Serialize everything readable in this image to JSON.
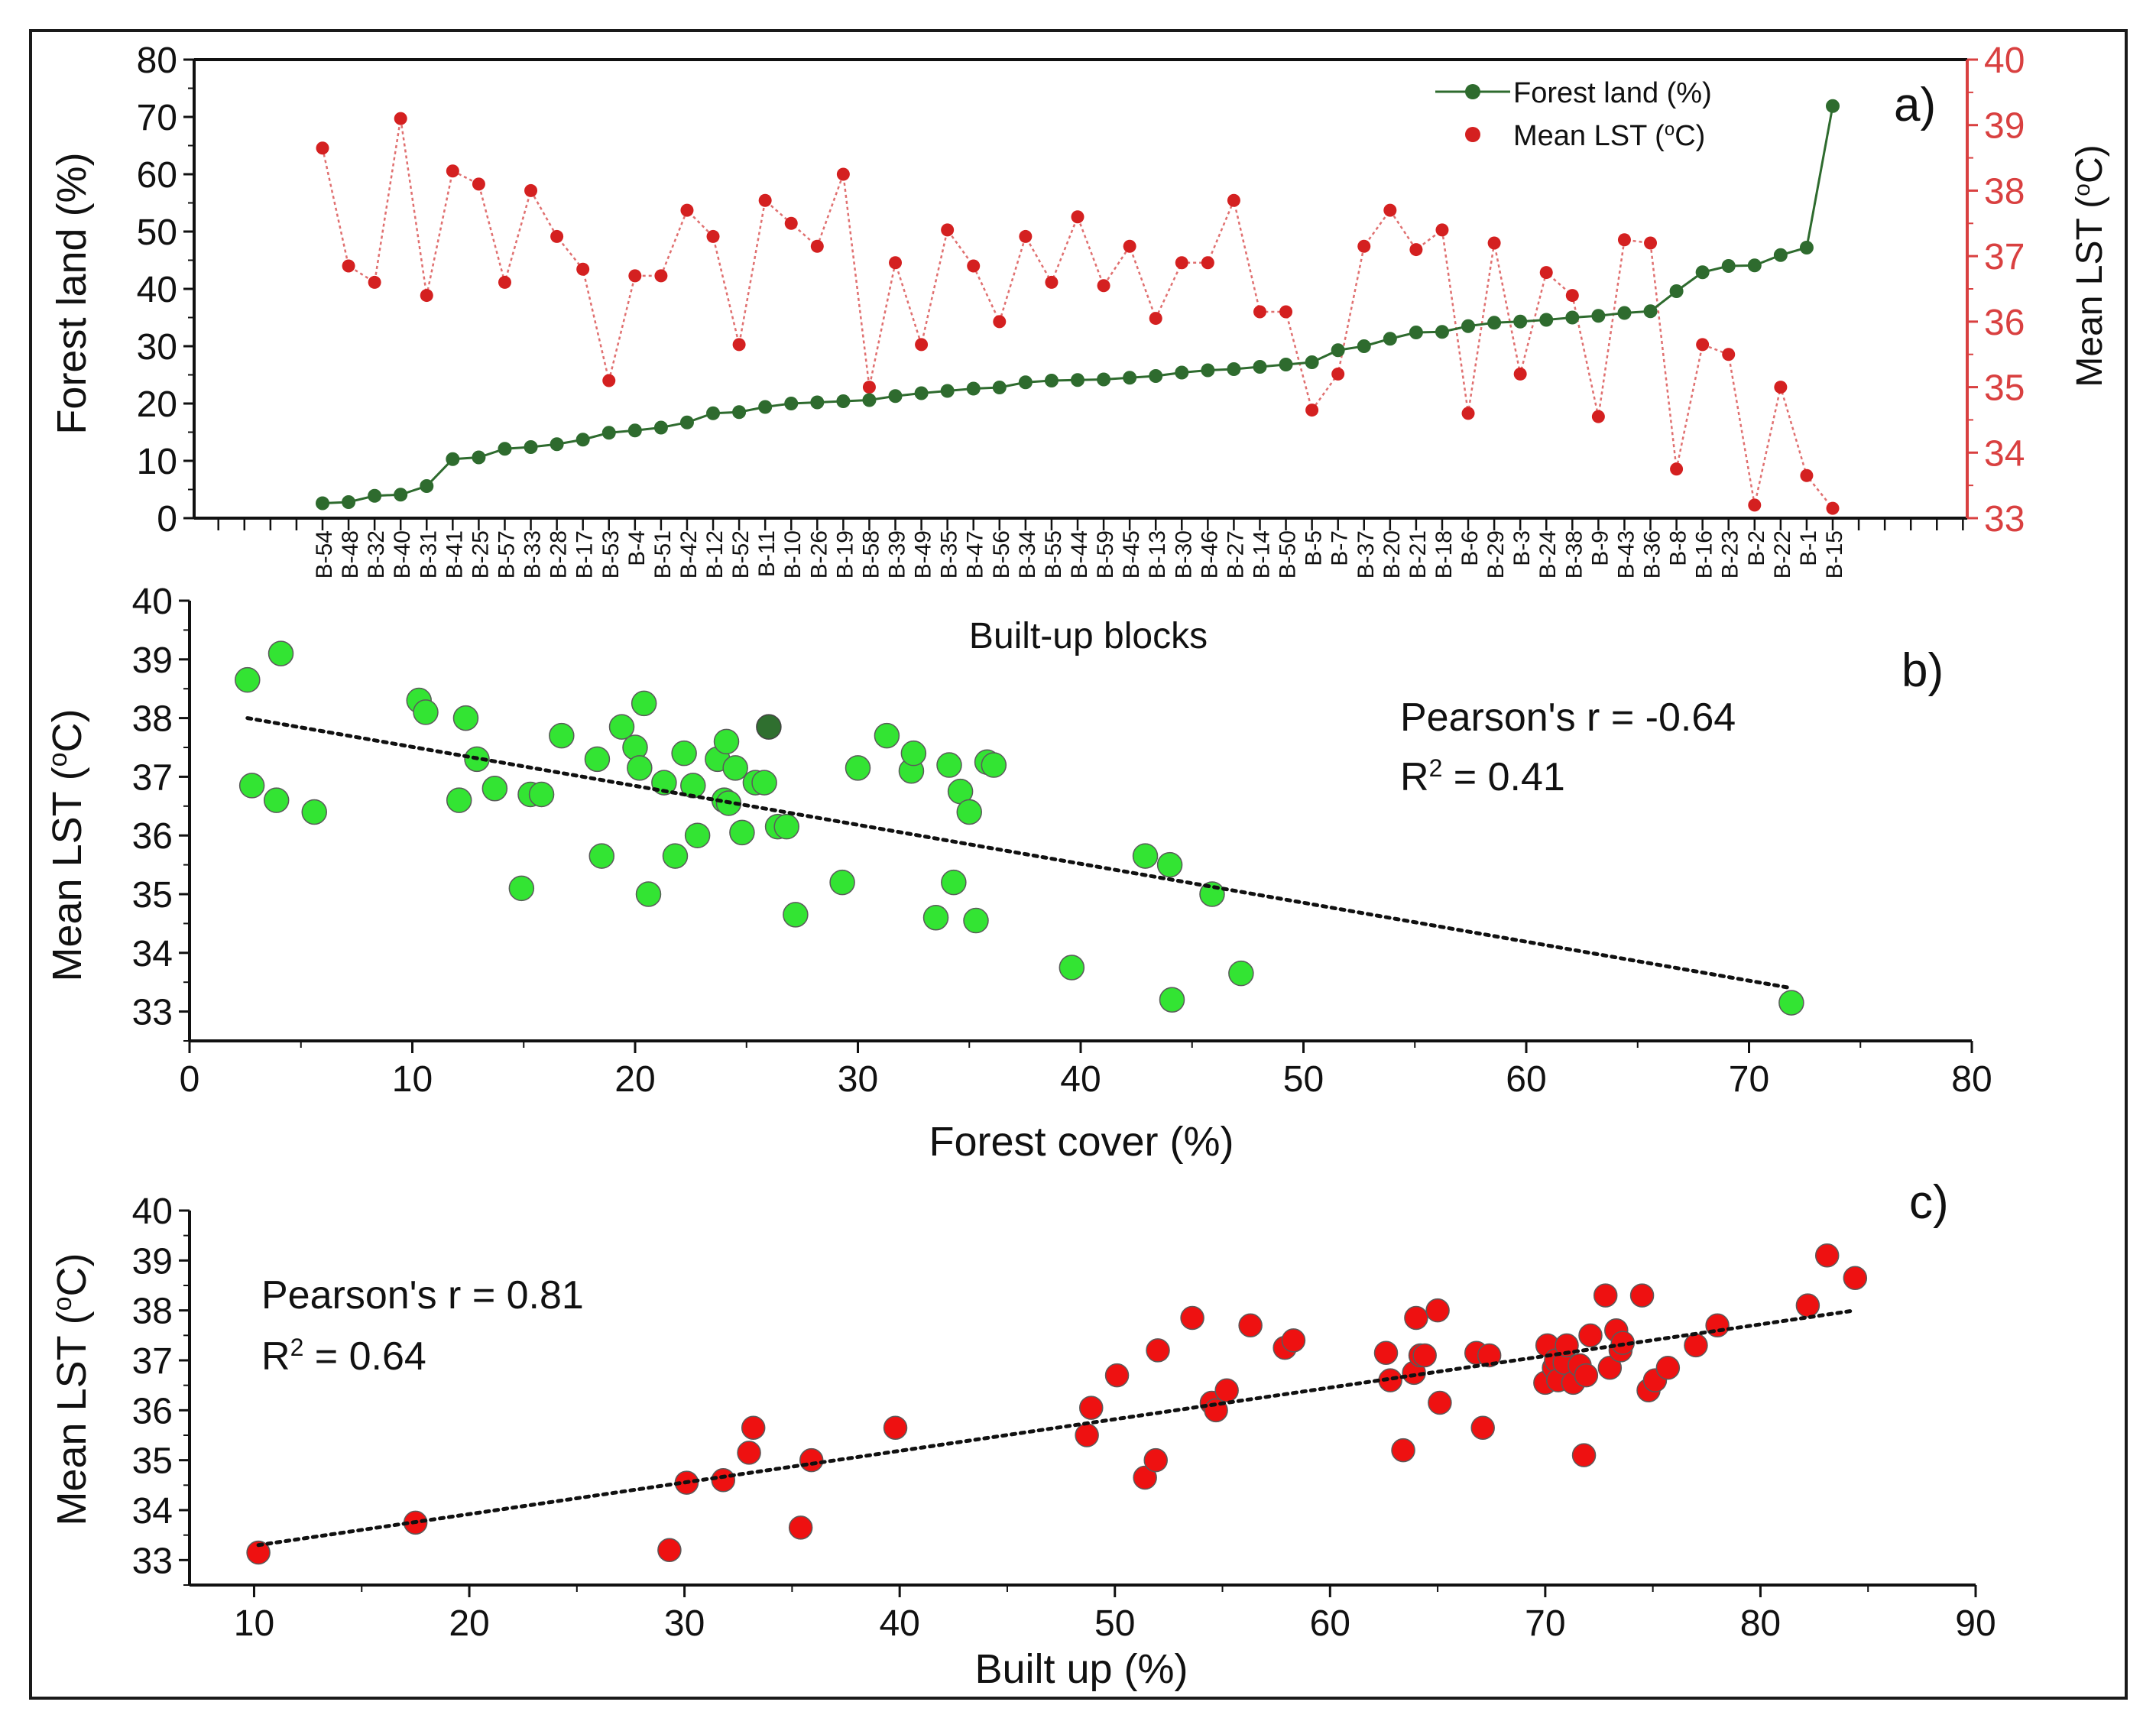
{
  "chart_data": [
    {
      "type": "line",
      "panel_label": "a)",
      "xlabel": "Built-up blocks",
      "ylabel": "Forest land (%)",
      "ylabel_right_html": "Mean LST (<tspan baseline-shift=\"super\" font-size=\"30\">o</tspan>C)",
      "ylim": [
        0,
        80
      ],
      "y_ticks": [
        "0",
        "10",
        "20",
        "30",
        "40",
        "50",
        "60",
        "70",
        "80"
      ],
      "ylim_right": [
        33,
        40
      ],
      "y_ticks_right": [
        "33",
        "34",
        "35",
        "36",
        "37",
        "38",
        "39",
        "40"
      ],
      "legend_position": "top-right",
      "legend": {
        "forest": "Forest land (%)",
        "lst_html": "Mean LST (<tspan baseline-shift=\"super\" font-size=\"24\">o</tspan>C)"
      },
      "colors": {
        "forest": "#2e6b2e",
        "lst": "#d42020",
        "right_axis": "#d94040"
      },
      "categories": [
        "B-54",
        "B-48",
        "B-32",
        "B-40",
        "B-31",
        "B-41",
        "B-25",
        "B-57",
        "B-33",
        "B-28",
        "B-17",
        "B-53",
        "B-4",
        "B-51",
        "B-42",
        "B-12",
        "B-52",
        "B-11",
        "B-10",
        "B-26",
        "B-19",
        "B-58",
        "B-39",
        "B-49",
        "B-35",
        "B-47",
        "B-56",
        "B-34",
        "B-55",
        "B-44",
        "B-59",
        "B-45",
        "B-13",
        "B-30",
        "B-46",
        "B-27",
        "B-14",
        "B-50",
        "B-5",
        "B-7",
        "B-37",
        "B-20",
        "B-21",
        "B-18",
        "B-6",
        "B-29",
        "B-3",
        "B-24",
        "B-38",
        "B-9",
        "B-43",
        "B-36",
        "B-8",
        "B-16",
        "B-23",
        "B-2",
        "B-22",
        "B-1",
        "B-15"
      ],
      "series": [
        {
          "name": "Forest land (%)",
          "axis": "left",
          "values": [
            2.6,
            2.8,
            3.9,
            4.1,
            5.6,
            10.3,
            10.6,
            12.1,
            12.4,
            12.9,
            13.7,
            14.9,
            15.3,
            15.8,
            16.7,
            18.3,
            18.5,
            19.4,
            20.0,
            20.2,
            20.4,
            20.6,
            21.3,
            21.8,
            22.2,
            22.6,
            22.8,
            23.7,
            24.0,
            24.1,
            24.2,
            24.5,
            24.8,
            25.4,
            25.8,
            26.0,
            26.4,
            26.8,
            27.2,
            29.3,
            30.0,
            31.3,
            32.4,
            32.5,
            33.5,
            34.1,
            34.3,
            34.6,
            35.0,
            35.3,
            35.8,
            36.1,
            39.6,
            42.9,
            44.0,
            44.1,
            45.9,
            47.2,
            71.9
          ]
        },
        {
          "name": "Mean LST (°C)",
          "axis": "right",
          "values": [
            38.65,
            36.85,
            36.6,
            39.1,
            36.4,
            38.3,
            38.1,
            36.6,
            38.0,
            37.3,
            36.8,
            35.1,
            36.7,
            36.7,
            37.7,
            37.3,
            35.65,
            37.85,
            37.5,
            37.15,
            38.25,
            35.0,
            36.9,
            35.65,
            37.4,
            36.85,
            36.0,
            37.3,
            36.6,
            37.6,
            36.55,
            37.15,
            36.05,
            36.9,
            36.9,
            37.85,
            36.15,
            36.15,
            34.65,
            35.2,
            37.15,
            37.7,
            37.1,
            37.4,
            34.6,
            37.2,
            35.2,
            36.75,
            36.4,
            34.55,
            37.25,
            37.2,
            33.75,
            35.65,
            35.5,
            33.2,
            35.0,
            33.65,
            33.15
          ]
        }
      ]
    },
    {
      "type": "scatter",
      "panel_label": "b)",
      "xlabel": "Forest cover (%)",
      "ylabel_html": "Mean LST (<tspan baseline-shift=\"super\" font-size=\"34\">o</tspan>C)",
      "xlim": [
        0,
        80
      ],
      "x_ticks": [
        "0",
        "10",
        "20",
        "30",
        "40",
        "50",
        "60",
        "70",
        "80"
      ],
      "ylim": [
        32.5,
        40
      ],
      "y_ticks": [
        "33",
        "34",
        "35",
        "36",
        "37",
        "38",
        "39",
        "40"
      ],
      "annotation_r": "Pearson's r = -0.64",
      "annotation_r2_html": "R<tspan baseline-shift=\"super\" font-size=\"32\">2</tspan> = 0.41",
      "trendline": {
        "x": [
          2.6,
          71.9
        ],
        "y": [
          38.0,
          33.4
        ]
      },
      "point_color": "#33e433",
      "highlight_color": "#2f6f2f",
      "highlight": {
        "x": 26.0,
        "y": 37.85
      },
      "x": [
        2.6,
        2.8,
        3.9,
        4.1,
        5.6,
        10.3,
        10.6,
        12.1,
        12.4,
        12.9,
        13.7,
        14.9,
        15.3,
        15.8,
        16.7,
        18.3,
        18.5,
        19.4,
        20.0,
        20.2,
        20.4,
        20.6,
        21.3,
        21.8,
        22.2,
        22.6,
        22.8,
        23.7,
        24.0,
        24.1,
        24.2,
        24.5,
        24.8,
        25.4,
        25.8,
        26.4,
        26.8,
        27.2,
        29.3,
        30.0,
        31.3,
        32.4,
        32.5,
        33.5,
        34.1,
        34.3,
        34.6,
        35.0,
        35.3,
        35.8,
        36.1,
        39.6,
        42.9,
        44.0,
        44.1,
        45.9,
        47.2,
        71.9
      ],
      "y": [
        38.65,
        36.85,
        36.6,
        39.1,
        36.4,
        38.3,
        38.1,
        36.6,
        38.0,
        37.3,
        36.8,
        35.1,
        36.7,
        36.7,
        37.7,
        37.3,
        35.65,
        37.85,
        37.5,
        37.15,
        38.25,
        35.0,
        36.9,
        35.65,
        37.4,
        36.85,
        36.0,
        37.3,
        36.6,
        37.6,
        36.55,
        37.15,
        36.05,
        36.9,
        36.9,
        36.15,
        36.15,
        34.65,
        35.2,
        37.15,
        37.7,
        37.1,
        37.4,
        34.6,
        37.2,
        35.2,
        36.75,
        36.4,
        34.55,
        37.25,
        37.2,
        33.75,
        35.65,
        35.5,
        33.2,
        35.0,
        33.65,
        33.15
      ]
    },
    {
      "type": "scatter",
      "panel_label": "c)",
      "xlabel": "Built up (%)",
      "ylabel_html": "Mean LST (<tspan baseline-shift=\"super\" font-size=\"34\">o</tspan>C)",
      "xlim": [
        7,
        90
      ],
      "x_ticks": [
        "10",
        "20",
        "30",
        "40",
        "50",
        "60",
        "70",
        "80",
        "90"
      ],
      "ylim": [
        32.5,
        40
      ],
      "y_ticks": [
        "33",
        "34",
        "35",
        "36",
        "37",
        "38",
        "39",
        "40"
      ],
      "annotation_r": "Pearson's r = 0.81",
      "annotation_r2_html": "R<tspan baseline-shift=\"super\" font-size=\"32\">2</tspan> = 0.64",
      "trendline": {
        "x": [
          10.2,
          84.4
        ],
        "y": [
          33.3,
          38.0
        ]
      },
      "point_color": "#ee1111",
      "x": [
        10.2,
        17.5,
        29.3,
        30.1,
        31.8,
        33.0,
        33.2,
        35.4,
        35.9,
        39.8,
        48.7,
        48.9,
        50.1,
        51.4,
        51.9,
        52.0,
        53.6,
        54.5,
        54.7,
        55.2,
        56.3,
        57.9,
        58.3,
        62.6,
        62.8,
        63.4,
        63.9,
        64.0,
        64.2,
        64.4,
        65.0,
        65.1,
        66.8,
        67.1,
        67.4,
        70.0,
        70.1,
        70.4,
        70.5,
        70.6,
        70.9,
        71.0,
        71.3,
        71.6,
        71.8,
        71.9,
        72.1,
        72.8,
        73.0,
        73.3,
        73.5,
        73.6,
        74.5,
        74.8,
        75.1,
        75.7,
        77.0,
        78.0,
        82.2,
        83.1,
        84.4
      ],
      "y": [
        33.15,
        33.75,
        33.2,
        34.55,
        34.6,
        35.15,
        35.65,
        33.65,
        35.0,
        35.65,
        35.5,
        36.05,
        36.7,
        34.65,
        35.0,
        37.2,
        37.85,
        36.15,
        36.0,
        36.4,
        37.7,
        37.25,
        37.4,
        37.15,
        36.6,
        35.2,
        36.75,
        37.85,
        37.1,
        37.1,
        38.0,
        36.15,
        37.15,
        35.65,
        37.1,
        36.55,
        37.3,
        36.85,
        37.0,
        36.6,
        36.95,
        37.3,
        36.55,
        36.9,
        35.1,
        36.7,
        37.5,
        38.3,
        36.85,
        37.6,
        37.2,
        37.35,
        38.3,
        36.4,
        36.6,
        36.85,
        37.3,
        37.7,
        38.1,
        39.1,
        38.65
      ]
    }
  ]
}
